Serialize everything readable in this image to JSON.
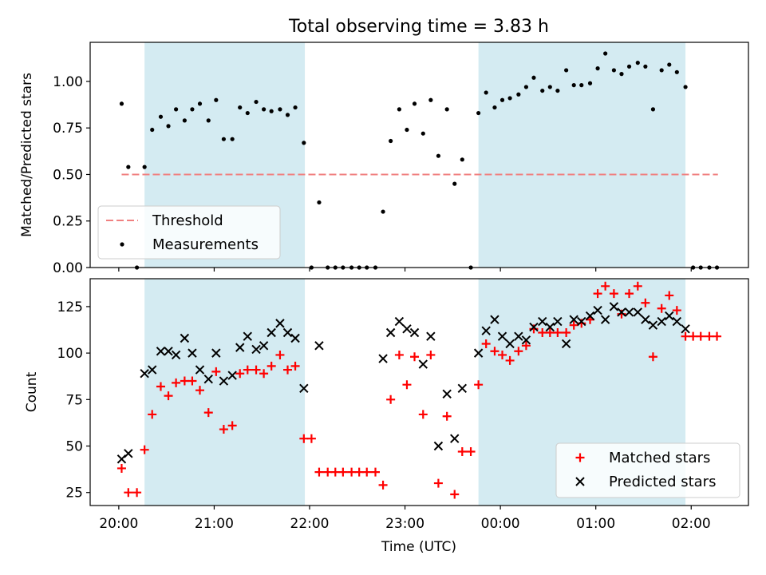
{
  "figure": {
    "title": "Total observing time = 3.83 h",
    "xlabel": "Time (UTC)",
    "x_tick_labels": [
      "20:00",
      "21:00",
      "22:00",
      "23:00",
      "00:00",
      "01:00",
      "02:00"
    ]
  },
  "chart_data": [
    {
      "type": "scatter",
      "ylabel": "Matched/Predicted stars",
      "x_unit": "hours since 20:00 UTC",
      "xlim": [
        -0.3,
        6.6
      ],
      "ylim": [
        0.0,
        1.21
      ],
      "y_tick_labels": [
        "0.00",
        "0.25",
        "0.50",
        "0.75",
        "1.00"
      ],
      "shaded_intervals": [
        [
          0.27,
          1.95
        ],
        [
          3.77,
          5.94
        ]
      ],
      "grid": false,
      "legend_position": "lower-left",
      "series": [
        {
          "name": "Threshold",
          "style": "dashed-line",
          "color": "#f08080",
          "points": [
            [
              0.03,
              0.5
            ],
            [
              6.28,
              0.5
            ]
          ]
        },
        {
          "name": "Measurements",
          "style": "dot",
          "color": "#000000",
          "points": [
            [
              0.03,
              0.88
            ],
            [
              0.1,
              0.54
            ],
            [
              0.19,
              0.0
            ],
            [
              0.27,
              0.54
            ],
            [
              0.35,
              0.74
            ],
            [
              0.44,
              0.81
            ],
            [
              0.52,
              0.76
            ],
            [
              0.6,
              0.85
            ],
            [
              0.69,
              0.79
            ],
            [
              0.77,
              0.85
            ],
            [
              0.85,
              0.88
            ],
            [
              0.94,
              0.79
            ],
            [
              1.02,
              0.9
            ],
            [
              1.1,
              0.69
            ],
            [
              1.19,
              0.69
            ],
            [
              1.27,
              0.86
            ],
            [
              1.35,
              0.83
            ],
            [
              1.44,
              0.89
            ],
            [
              1.52,
              0.85
            ],
            [
              1.6,
              0.84
            ],
            [
              1.69,
              0.85
            ],
            [
              1.77,
              0.82
            ],
            [
              1.85,
              0.86
            ],
            [
              1.94,
              0.67
            ],
            [
              2.02,
              0.0
            ],
            [
              2.1,
              0.35
            ],
            [
              2.19,
              0.0
            ],
            [
              2.27,
              0.0
            ],
            [
              2.35,
              0.0
            ],
            [
              2.44,
              0.0
            ],
            [
              2.52,
              0.0
            ],
            [
              2.6,
              0.0
            ],
            [
              2.69,
              0.0
            ],
            [
              2.77,
              0.3
            ],
            [
              2.85,
              0.68
            ],
            [
              2.94,
              0.85
            ],
            [
              3.02,
              0.74
            ],
            [
              3.1,
              0.88
            ],
            [
              3.19,
              0.72
            ],
            [
              3.27,
              0.9
            ],
            [
              3.35,
              0.6
            ],
            [
              3.44,
              0.85
            ],
            [
              3.52,
              0.45
            ],
            [
              3.6,
              0.58
            ],
            [
              3.69,
              0.0
            ],
            [
              3.77,
              0.83
            ],
            [
              3.85,
              0.94
            ],
            [
              3.94,
              0.86
            ],
            [
              4.02,
              0.9
            ],
            [
              4.1,
              0.91
            ],
            [
              4.19,
              0.93
            ],
            [
              4.27,
              0.97
            ],
            [
              4.35,
              1.02
            ],
            [
              4.44,
              0.95
            ],
            [
              4.52,
              0.97
            ],
            [
              4.6,
              0.95
            ],
            [
              4.69,
              1.06
            ],
            [
              4.77,
              0.98
            ],
            [
              4.85,
              0.98
            ],
            [
              4.94,
              0.99
            ],
            [
              5.02,
              1.07
            ],
            [
              5.1,
              1.15
            ],
            [
              5.19,
              1.06
            ],
            [
              5.27,
              1.04
            ],
            [
              5.35,
              1.08
            ],
            [
              5.44,
              1.1
            ],
            [
              5.52,
              1.08
            ],
            [
              5.6,
              0.85
            ],
            [
              5.69,
              1.06
            ],
            [
              5.77,
              1.09
            ],
            [
              5.85,
              1.05
            ],
            [
              5.94,
              0.97
            ],
            [
              6.02,
              0.0
            ],
            [
              6.1,
              0.0
            ],
            [
              6.19,
              0.0
            ],
            [
              6.27,
              0.0
            ]
          ]
        }
      ]
    },
    {
      "type": "scatter",
      "ylabel": "Count",
      "x_unit": "hours since 20:00 UTC",
      "xlim": [
        -0.3,
        6.6
      ],
      "ylim": [
        18,
        140
      ],
      "y_tick_labels": [
        "25",
        "50",
        "75",
        "100",
        "125"
      ],
      "shaded_intervals": [
        [
          0.27,
          1.95
        ],
        [
          3.77,
          5.94
        ]
      ],
      "grid": false,
      "legend_position": "lower-right",
      "series": [
        {
          "name": "Matched stars",
          "style": "plus",
          "color": "#ff0000",
          "points": [
            [
              0.03,
              38
            ],
            [
              0.1,
              25
            ],
            [
              0.19,
              25
            ],
            [
              0.27,
              48
            ],
            [
              0.35,
              67
            ],
            [
              0.44,
              82
            ],
            [
              0.52,
              77
            ],
            [
              0.6,
              84
            ],
            [
              0.69,
              85
            ],
            [
              0.77,
              85
            ],
            [
              0.85,
              80
            ],
            [
              0.94,
              68
            ],
            [
              1.02,
              90
            ],
            [
              1.1,
              59
            ],
            [
              1.19,
              61
            ],
            [
              1.27,
              89
            ],
            [
              1.35,
              91
            ],
            [
              1.44,
              91
            ],
            [
              1.52,
              89
            ],
            [
              1.6,
              93
            ],
            [
              1.69,
              99
            ],
            [
              1.77,
              91
            ],
            [
              1.85,
              93
            ],
            [
              1.94,
              54
            ],
            [
              2.02,
              54
            ],
            [
              2.1,
              36
            ],
            [
              2.19,
              36
            ],
            [
              2.27,
              36
            ],
            [
              2.35,
              36
            ],
            [
              2.44,
              36
            ],
            [
              2.52,
              36
            ],
            [
              2.6,
              36
            ],
            [
              2.69,
              36
            ],
            [
              2.77,
              29
            ],
            [
              2.85,
              75
            ],
            [
              2.94,
              99
            ],
            [
              3.02,
              83
            ],
            [
              3.1,
              98
            ],
            [
              3.19,
              67
            ],
            [
              3.27,
              99
            ],
            [
              3.35,
              30
            ],
            [
              3.44,
              66
            ],
            [
              3.52,
              24
            ],
            [
              3.6,
              47
            ],
            [
              3.69,
              47
            ],
            [
              3.77,
              83
            ],
            [
              3.85,
              105
            ],
            [
              3.94,
              101
            ],
            [
              4.02,
              99
            ],
            [
              4.1,
              96
            ],
            [
              4.19,
              101
            ],
            [
              4.27,
              104
            ],
            [
              4.35,
              113
            ],
            [
              4.44,
              111
            ],
            [
              4.52,
              111
            ],
            [
              4.6,
              111
            ],
            [
              4.69,
              111
            ],
            [
              4.77,
              115
            ],
            [
              4.85,
              116
            ],
            [
              4.94,
              118
            ],
            [
              5.02,
              132
            ],
            [
              5.1,
              136
            ],
            [
              5.19,
              132
            ],
            [
              5.27,
              121
            ],
            [
              5.35,
              132
            ],
            [
              5.44,
              136
            ],
            [
              5.52,
              127
            ],
            [
              5.6,
              98
            ],
            [
              5.69,
              124
            ],
            [
              5.77,
              131
            ],
            [
              5.85,
              123
            ],
            [
              5.94,
              109
            ],
            [
              6.02,
              109
            ],
            [
              6.1,
              109
            ],
            [
              6.19,
              109
            ],
            [
              6.27,
              109
            ]
          ]
        },
        {
          "name": "Predicted stars",
          "style": "x",
          "color": "#000000",
          "points": [
            [
              0.03,
              43
            ],
            [
              0.1,
              46
            ],
            [
              0.27,
              89
            ],
            [
              0.35,
              91
            ],
            [
              0.44,
              101
            ],
            [
              0.52,
              101
            ],
            [
              0.6,
              99
            ],
            [
              0.69,
              108
            ],
            [
              0.77,
              100
            ],
            [
              0.85,
              91
            ],
            [
              0.94,
              86
            ],
            [
              1.02,
              100
            ],
            [
              1.1,
              85
            ],
            [
              1.19,
              88
            ],
            [
              1.27,
              103
            ],
            [
              1.35,
              109
            ],
            [
              1.44,
              102
            ],
            [
              1.52,
              104
            ],
            [
              1.6,
              111
            ],
            [
              1.69,
              116
            ],
            [
              1.77,
              111
            ],
            [
              1.85,
              108
            ],
            [
              1.94,
              81
            ],
            [
              2.1,
              104
            ],
            [
              2.77,
              97
            ],
            [
              2.85,
              111
            ],
            [
              2.94,
              117
            ],
            [
              3.02,
              113
            ],
            [
              3.1,
              111
            ],
            [
              3.19,
              94
            ],
            [
              3.27,
              109
            ],
            [
              3.35,
              50
            ],
            [
              3.44,
              78
            ],
            [
              3.52,
              54
            ],
            [
              3.6,
              81
            ],
            [
              3.77,
              100
            ],
            [
              3.85,
              112
            ],
            [
              3.94,
              118
            ],
            [
              4.02,
              109
            ],
            [
              4.1,
              105
            ],
            [
              4.19,
              109
            ],
            [
              4.27,
              107
            ],
            [
              4.35,
              114
            ],
            [
              4.44,
              117
            ],
            [
              4.52,
              114
            ],
            [
              4.6,
              117
            ],
            [
              4.69,
              105
            ],
            [
              4.77,
              118
            ],
            [
              4.85,
              117
            ],
            [
              4.94,
              120
            ],
            [
              5.02,
              123
            ],
            [
              5.1,
              118
            ],
            [
              5.19,
              125
            ],
            [
              5.27,
              122
            ],
            [
              5.35,
              122
            ],
            [
              5.44,
              122
            ],
            [
              5.52,
              118
            ],
            [
              5.6,
              115
            ],
            [
              5.69,
              117
            ],
            [
              5.77,
              120
            ],
            [
              5.85,
              117
            ],
            [
              5.94,
              113
            ]
          ]
        }
      ]
    }
  ]
}
